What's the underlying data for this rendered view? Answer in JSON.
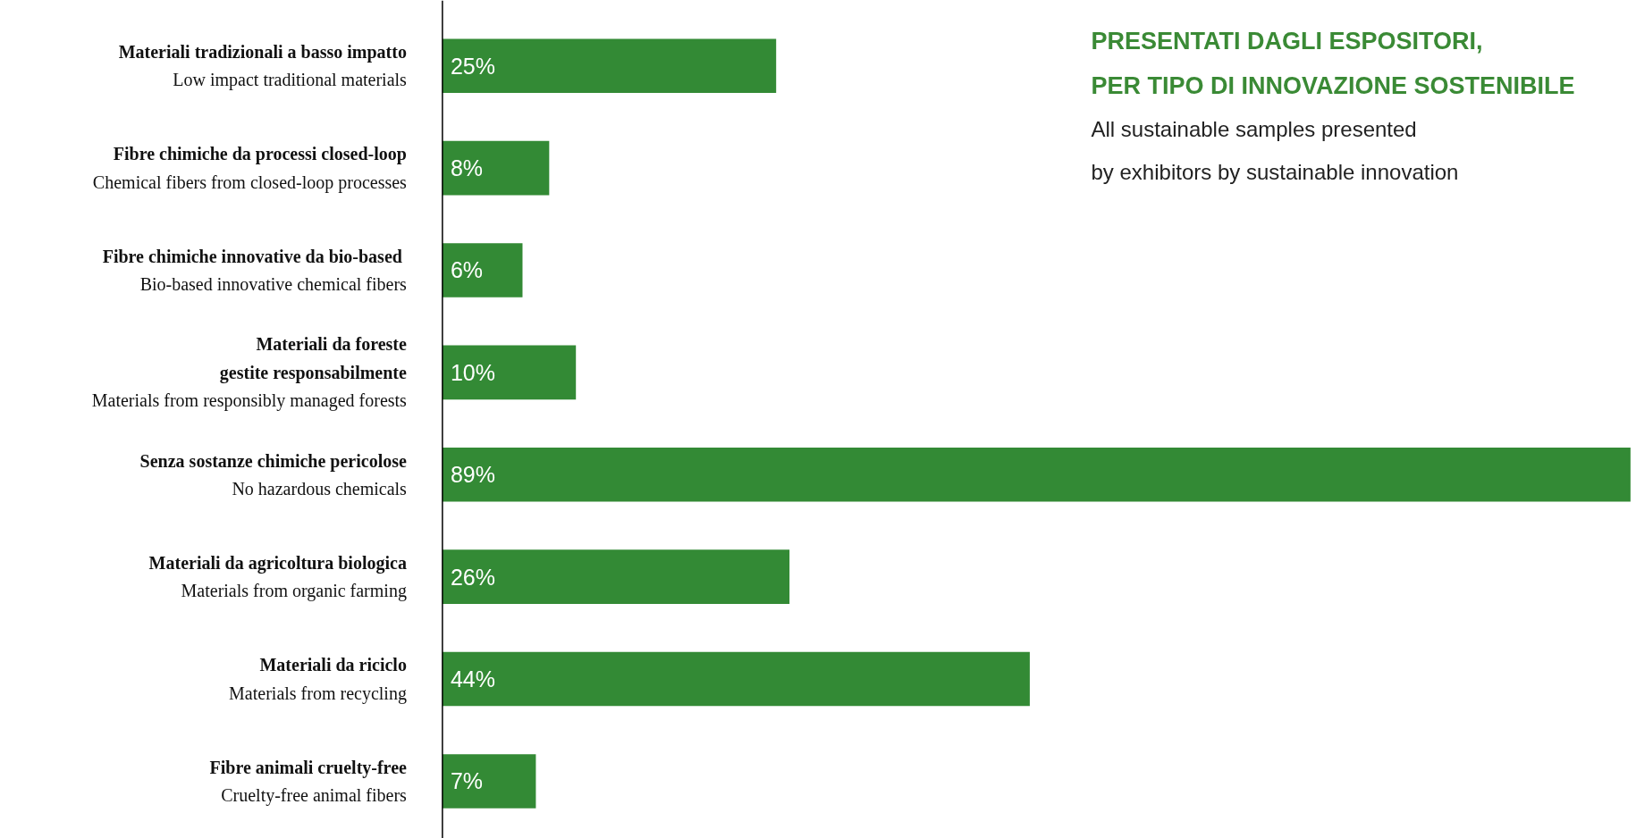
{
  "chart_data": {
    "type": "bar",
    "orientation": "horizontal",
    "title": "PRESENTATI DAGLI ESPOSITORI,\nPER TIPO DI INNOVAZIONE SOSTENIBILE",
    "subtitle": "All sustainable samples presented\nby exhibitors by sustainable innovation",
    "categories": [
      "Materiali tradizionali a basso impatto\nLow impact traditional materials",
      "Fibre chimiche da processi closed-loop\nChemical fibers from closed-loop processes",
      "Fibre chimiche  innovative da bio-based\nBio-based innovative chemical fibers",
      "Materiali da foreste\ngestite responsabilmente\nMaterials from responsibly managed forests",
      "Senza sostanze chimiche pericolose\nNo hazardous chemicals",
      "Materiali da agricoltura biologica\nMaterials from organic farming",
      "Materiali da riciclo\nMaterials from recycling",
      "Fibre animali cruelty-free\nCruelty-free animal fibers"
    ],
    "values": [
      25,
      8,
      6,
      10,
      89,
      26,
      44,
      7
    ],
    "value_labels": [
      "25%",
      "8%",
      "6%",
      "10%",
      "89%",
      "26%",
      "44%",
      "7%"
    ],
    "color": "#338a35"
  }
}
